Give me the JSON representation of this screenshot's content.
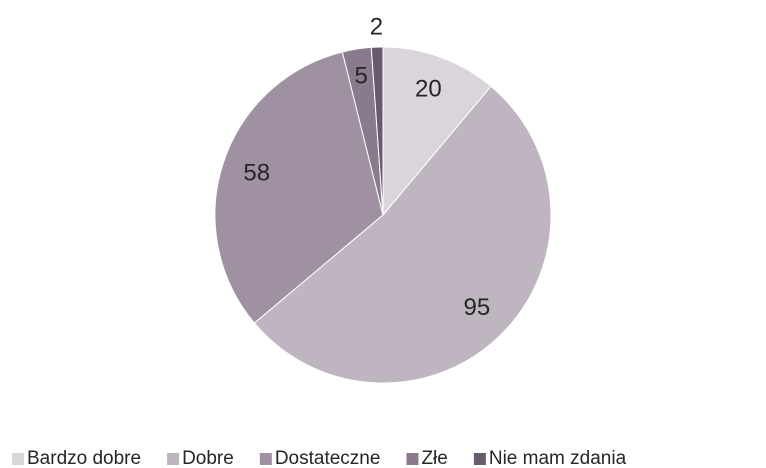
{
  "chart_data": {
    "type": "pie",
    "categories": [
      "Bardzo dobre",
      "Dobre",
      "Dostateczne",
      "Złe",
      "Nie mam zdania"
    ],
    "values": [
      20,
      95,
      58,
      5,
      2
    ],
    "colors": [
      "#dad4db",
      "#bfb5c1",
      "#9f90a2",
      "#8a7a8e",
      "#6b5a6f"
    ],
    "legend": "bottom"
  }
}
